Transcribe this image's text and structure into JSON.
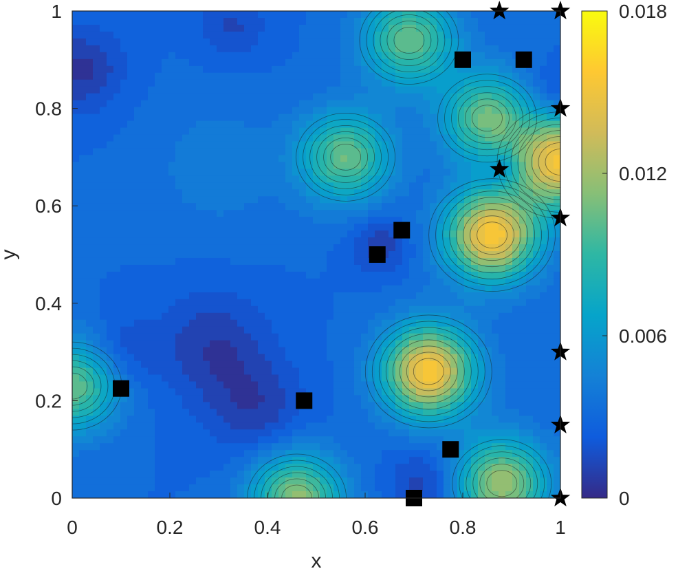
{
  "chart_data": {
    "type": "contour",
    "xlabel": "x",
    "ylabel": "y",
    "xlim": [
      0,
      1
    ],
    "ylim": [
      0,
      1
    ],
    "x_ticks": [
      "0",
      "0.2",
      "0.4",
      "0.6",
      "0.8",
      "1"
    ],
    "y_ticks": [
      "0",
      "0.2",
      "0.4",
      "0.6",
      "0.8",
      "1"
    ],
    "colorbar": {
      "colormap": "parula",
      "range": [
        0,
        0.018
      ],
      "ticks": [
        "0",
        "0.006",
        "0.012",
        "0.018"
      ]
    },
    "square_markers": [
      {
        "x": 0.1,
        "y": 0.225
      },
      {
        "x": 0.475,
        "y": 0.2
      },
      {
        "x": 0.625,
        "y": 0.5
      },
      {
        "x": 0.675,
        "y": 0.55
      },
      {
        "x": 0.775,
        "y": 0.1
      },
      {
        "x": 0.7,
        "y": 0.0
      },
      {
        "x": 0.8,
        "y": 0.9
      },
      {
        "x": 0.925,
        "y": 0.9
      }
    ],
    "star_markers": [
      {
        "x": 0.875,
        "y": 1.0
      },
      {
        "x": 1.0,
        "y": 1.0
      },
      {
        "x": 1.0,
        "y": 0.8
      },
      {
        "x": 0.875,
        "y": 0.675
      },
      {
        "x": 1.0,
        "y": 0.575
      },
      {
        "x": 1.0,
        "y": 0.3
      },
      {
        "x": 1.0,
        "y": 0.15
      },
      {
        "x": 1.0,
        "y": 0.0
      }
    ],
    "peaks": [
      {
        "x": 0.73,
        "y": 0.26,
        "value": 0.016
      },
      {
        "x": 0.86,
        "y": 0.54,
        "value": 0.016
      },
      {
        "x": 1.0,
        "y": 0.69,
        "value": 0.0155
      },
      {
        "x": 0.56,
        "y": 0.7,
        "value": 0.011
      },
      {
        "x": 0.69,
        "y": 0.94,
        "value": 0.011
      },
      {
        "x": 0.85,
        "y": 0.78,
        "value": 0.011
      },
      {
        "x": 0.46,
        "y": 0.0,
        "value": 0.012
      },
      {
        "x": 0.88,
        "y": 0.03,
        "value": 0.0125
      },
      {
        "x": 0.0,
        "y": 0.23,
        "value": 0.011
      }
    ]
  }
}
